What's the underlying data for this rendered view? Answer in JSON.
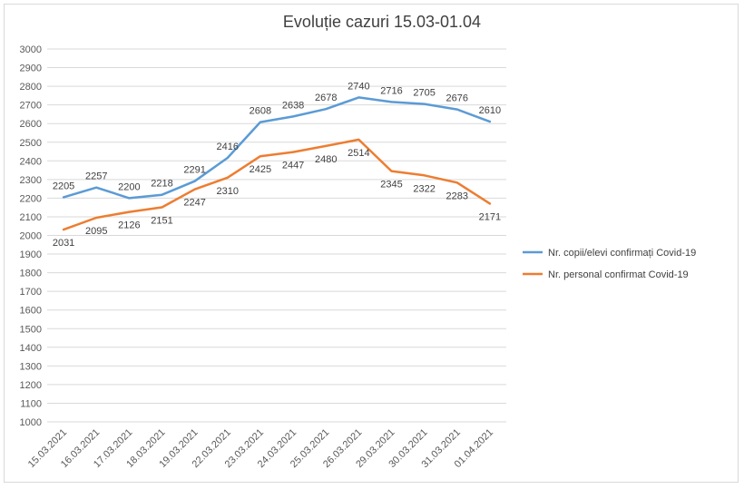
{
  "chart_data": {
    "type": "line",
    "title": "Evoluție cazuri 15.03-01.04",
    "xlabel": "",
    "ylabel": "",
    "ylim": [
      1000,
      3000
    ],
    "ytick_step": 100,
    "grid": true,
    "legend_position": "right",
    "categories": [
      "15.03.2021",
      "16.03.2021",
      "17.03.2021",
      "18.03.2021",
      "19.03.2021",
      "22.03.2021",
      "23.03.2021",
      "24.03.2021",
      "25.03.2021",
      "26.03.2021",
      "29.03.2021",
      "30.03.2021",
      "31.03.2021",
      "01.04.2021"
    ],
    "series": [
      {
        "name": "Nr. copii/elevi confirmați Covid-19",
        "color": "#5b9bd5",
        "label_position": "above",
        "values": [
          2205,
          2257,
          2200,
          2218,
          2291,
          2416,
          2608,
          2638,
          2678,
          2740,
          2716,
          2705,
          2676,
          2610
        ]
      },
      {
        "name": "Nr. personal confirmat Covid-19",
        "color": "#ed7d31",
        "label_position": "below",
        "values": [
          2031,
          2095,
          2126,
          2151,
          2247,
          2310,
          2425,
          2447,
          2480,
          2514,
          2345,
          2322,
          2283,
          2171
        ]
      }
    ]
  }
}
